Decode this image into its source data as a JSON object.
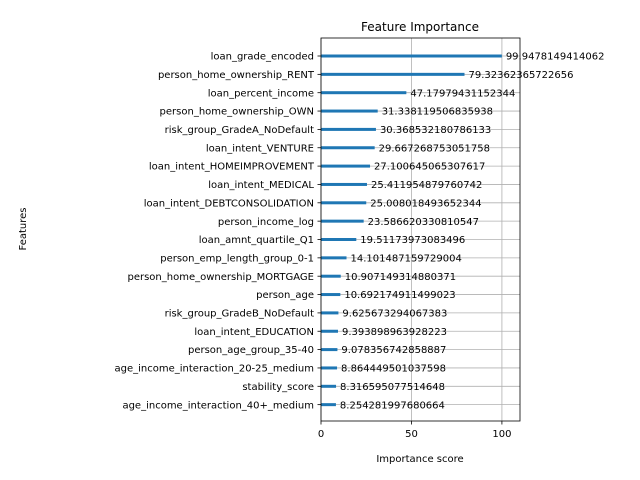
{
  "chart_data": {
    "type": "bar",
    "orientation": "horizontal",
    "title": "Feature Importance",
    "xlabel": "Importance score",
    "ylabel": "Features",
    "xlim": [
      0,
      110
    ],
    "xticks": [
      0,
      50,
      100
    ],
    "grid": true,
    "bar_color": "#1f77b4",
    "categories": [
      "loan_grade_encoded",
      "person_home_ownership_RENT",
      "loan_percent_income",
      "person_home_ownership_OWN",
      "risk_group_GradeA_NoDefault",
      "loan_intent_VENTURE",
      "loan_intent_HOMEIMPROVEMENT",
      "loan_intent_MEDICAL",
      "loan_intent_DEBTCONSOLIDATION",
      "person_income_log",
      "loan_amnt_quartile_Q1",
      "person_emp_length_group_0-1",
      "person_home_ownership_MORTGAGE",
      "person_age",
      "risk_group_GradeB_NoDefault",
      "loan_intent_EDUCATION",
      "person_age_group_35-40",
      "age_income_interaction_20-25_medium",
      "stability_score",
      "age_income_interaction_40+_medium"
    ],
    "values": [
      99.9478149414062,
      79.32362365722656,
      47.17979431152344,
      31.338119506835938,
      30.368532180786133,
      29.667268753051758,
      27.100645065307617,
      25.411954879760742,
      25.008018493652344,
      23.586620330810547,
      19.51173973083496,
      14.101487159729004,
      10.907149314880371,
      10.692174911499023,
      9.625673294067383,
      9.393898963928223,
      9.078356742858887,
      8.864449501037598,
      8.316595077514648,
      8.254281997680664
    ],
    "value_labels": [
      "99.9478149414062",
      "79.32362365722656",
      "47.17979431152344",
      "31.338119506835938",
      "30.368532180786133",
      "29.667268753051758",
      "27.100645065307617",
      "25.411954879760742",
      "25.008018493652344",
      "23.586620330810547",
      "19.51173973083496",
      "14.101487159729004",
      "10.907149314880371",
      "10.692174911499023",
      "9.625673294067383",
      "9.393898963928223",
      "9.078356742858887",
      "8.864449501037598",
      "8.316595077514648",
      "8.254281997680664"
    ]
  }
}
